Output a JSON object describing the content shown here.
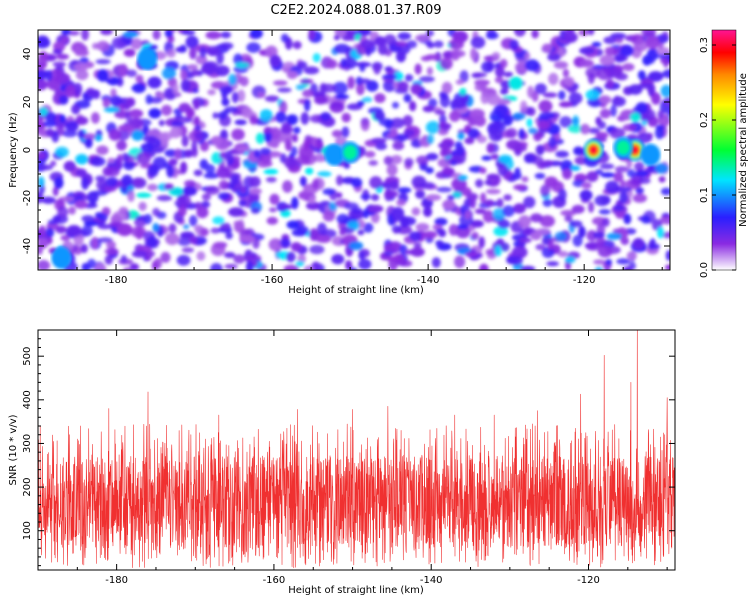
{
  "title": "C2E2.2024.088.01.37.R09",
  "colors": {
    "snr_line": "#f03030",
    "colormap": [
      "#ffffff",
      "#8a2be2",
      "#2a1fff",
      "#00e5ff",
      "#00ff33",
      "#ffff00",
      "#ff8a00",
      "#ff0000",
      "#ff1493"
    ]
  },
  "chart_data": [
    {
      "type": "heatmap",
      "xlabel": "Height of straight line (km)",
      "ylabel": "Frequency (Hz)",
      "xlim": [
        -190,
        -109
      ],
      "ylim": [
        -50,
        50
      ],
      "xticks": [
        -180,
        -160,
        -140,
        -120
      ],
      "yticks": [
        -40,
        -20,
        0,
        20,
        40
      ],
      "colorbar": {
        "label": "Normalized spectral amplitude",
        "range": [
          0,
          0.32
        ],
        "ticks": [
          0.0,
          0.1,
          0.2,
          0.3
        ],
        "tick_labels": [
          "0.0",
          "0.1",
          "0.2",
          "0.3"
        ]
      },
      "background_level": 0.05,
      "hotspots": [
        {
          "x": -118.8,
          "y": 0,
          "value": 0.3
        },
        {
          "x": -113.5,
          "y": 0,
          "value": 0.3
        },
        {
          "x": -115.0,
          "y": 1,
          "value": 0.14
        },
        {
          "x": -152.0,
          "y": -2,
          "value": 0.13
        },
        {
          "x": -150.0,
          "y": -1,
          "value": 0.14
        },
        {
          "x": -187.0,
          "y": -45,
          "value": 0.12
        },
        {
          "x": -176.0,
          "y": 38,
          "value": 0.11
        },
        {
          "x": -111.5,
          "y": -2,
          "value": 0.13
        }
      ]
    },
    {
      "type": "line",
      "xlabel": "Height of straight line (km)",
      "ylabel": "SNR (10 * v/v)",
      "xlim": [
        -190,
        -109
      ],
      "ylim": [
        10,
        560
      ],
      "xticks": [
        -180,
        -160,
        -140,
        -120
      ],
      "yticks": [
        100,
        200,
        300,
        400,
        500
      ],
      "series": [
        {
          "typical_range": [
            60,
            270
          ],
          "peaks": [
            {
              "x": -186.0,
              "y": 320
            },
            {
              "x": -181.0,
              "y": 380
            },
            {
              "x": -176.0,
              "y": 418
            },
            {
              "x": -167.0,
              "y": 365
            },
            {
              "x": -157.0,
              "y": 378
            },
            {
              "x": -150.0,
              "y": 378
            },
            {
              "x": -145.5,
              "y": 385
            },
            {
              "x": -137.0,
              "y": 365
            },
            {
              "x": -132.0,
              "y": 365
            },
            {
              "x": -126.5,
              "y": 375
            },
            {
              "x": -121.0,
              "y": 413
            },
            {
              "x": -118.0,
              "y": 502
            },
            {
              "x": -113.8,
              "y": 560
            },
            {
              "x": -114.6,
              "y": 440
            },
            {
              "x": -110.0,
              "y": 405
            }
          ]
        }
      ]
    }
  ]
}
